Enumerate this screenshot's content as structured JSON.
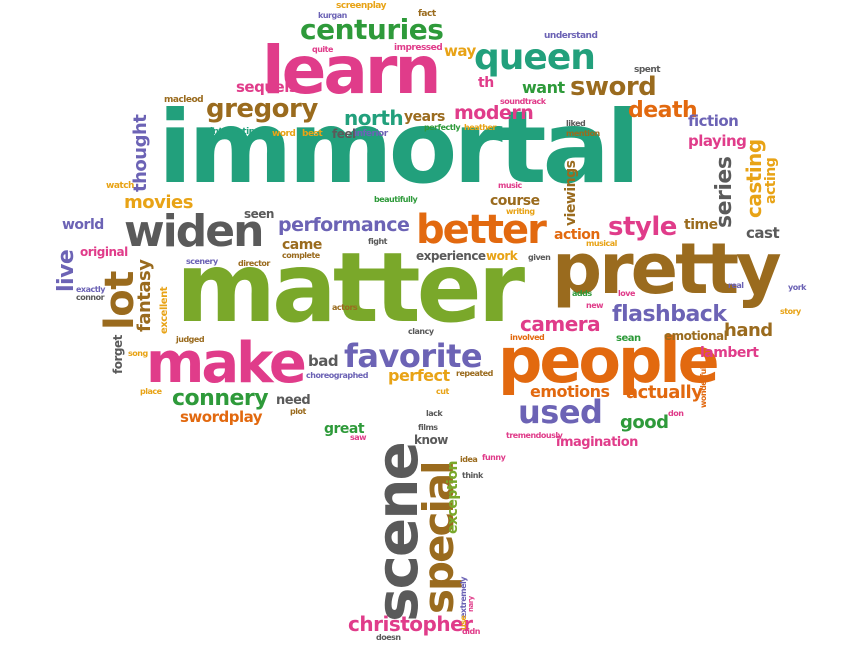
{
  "words": {
    "immortal": "immortal",
    "matter": "matter",
    "pretty": "pretty",
    "learn": "learn",
    "people": "people",
    "make": "make",
    "widen": "widen",
    "better": "better",
    "queen": "queen",
    "centuries": "centuries",
    "favorite": "favorite",
    "scene": "scene",
    "special": "special",
    "gregory": "gregory",
    "sword": "sword",
    "lot": "lot",
    "used": "used",
    "connery": "connery",
    "christopher": "christopher",
    "style": "style",
    "flashback": "flashback",
    "camera": "camera",
    "death": "death",
    "modern": "modern",
    "north": "north",
    "performance": "performance",
    "movies": "movies",
    "fantasy": "fantasy",
    "live": "live",
    "thought": "thought",
    "series": "series",
    "casting": "casting",
    "actually": "actually",
    "good": "good",
    "hand": "hand",
    "perfect": "perfect",
    "emotions": "emotions",
    "swordplay": "swordplay",
    "imagination": "imagination",
    "lambert": "lambert",
    "emotional": "emotional",
    "action": "action",
    "course": "course",
    "viewings": "viewings",
    "great": "great",
    "know": "know",
    "exception": "exception",
    "fiction": "fiction",
    "playing": "playing",
    "acting": "acting",
    "cast": "cast",
    "time": "time",
    "want": "want",
    "years": "years",
    "way": "way",
    "th": "th",
    "sequels": "sequels",
    "world": "world",
    "original": "original",
    "came": "came",
    "seen": "seen",
    "experience": "experience",
    "work": "work",
    "bad": "bad",
    "need": "need",
    "plot": "plot",
    "excellent": "excellent",
    "forget": "forget",
    "sean": "sean",
    "adds": "adds",
    "love": "love",
    "real": "real",
    "story": "story",
    "york": "york",
    "new": "new",
    "connor": "connor",
    "exactly": "exactly",
    "scenery": "scenery",
    "director": "director",
    "complete": "complete",
    "fight": "fight",
    "given": "given",
    "musical": "musical",
    "writing": "writing",
    "music": "music",
    "beautifully": "beautifully",
    "inferior": "inferior",
    "feel": "feel",
    "best": "best",
    "word": "word",
    "interesting": "interesting",
    "macleod": "macleod",
    "watch": "watch",
    "perfectly": "perfectly",
    "heather": "heather",
    "soundtrack": "soundtrack",
    "liked": "liked",
    "mention": "mention",
    "spent": "spent",
    "understand": "understand",
    "fact": "fact",
    "screenplay": "screenplay",
    "kurgan": "kurgan",
    "quite": "quite",
    "impressed": "impressed",
    "actors": "actors",
    "clancy": "clancy",
    "involved": "involved",
    "judged": "judged",
    "song": "song",
    "place": "place",
    "choreographed": "choreographed",
    "repeated": "repeated",
    "cut": "cut",
    "lack": "lack",
    "saw": "saw",
    "films": "films",
    "idea": "idea",
    "funny": "funny",
    "think": "think",
    "tremendously": "tremendously",
    "wonderful": "wonderful",
    "don": "don",
    "extremely": "extremely",
    "use": "use",
    "doesn": "doesn",
    "didn": "didn",
    "nary": "nary"
  },
  "palette": {
    "green": "#2e9a3a",
    "lime": "#7aa82a",
    "teal": "#22a07c",
    "pink": "#e03c8a",
    "orange": "#e2690f",
    "yellow": "#e8a316",
    "brown": "#9a6b1e",
    "violet": "#6c63b5",
    "gray": "#5a5a5a"
  }
}
